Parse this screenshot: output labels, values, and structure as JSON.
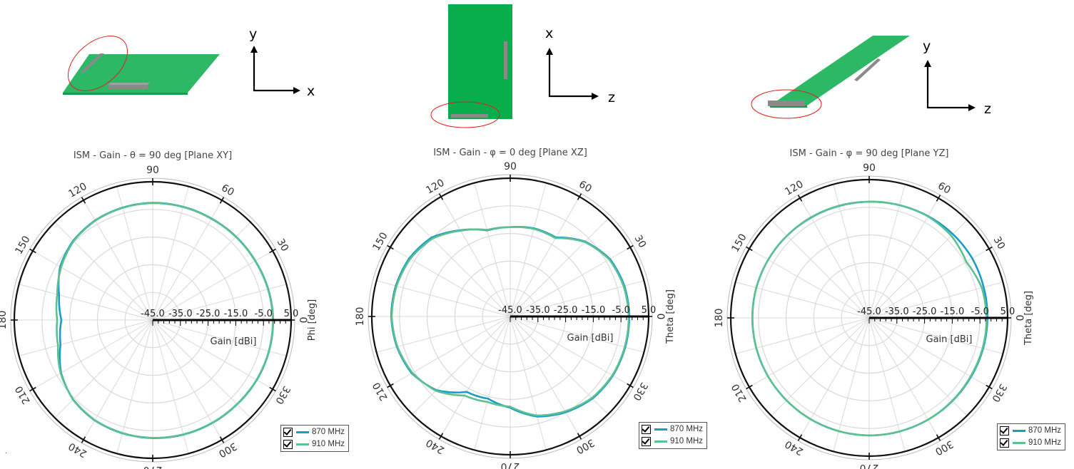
{
  "colors": {
    "s870": "#1a9cc9",
    "s910": "#5cc08f",
    "board": "#2db866",
    "board_dark": "#1a9a4e",
    "component": "#8a8a8a",
    "ellipse": "#e02020"
  },
  "diagram_labels": {
    "xy": {
      "v": "y",
      "h": "x"
    },
    "xz": {
      "v": "x",
      "h": "z"
    },
    "yz": {
      "v": "y",
      "h": "z"
    }
  },
  "chart_data": [
    {
      "type": "polar",
      "title": "ISM - Gain - θ = 90 deg [Plane XY]",
      "angle_ticks": [
        "0",
        "30",
        "60",
        "90",
        "120",
        "150",
        "180",
        "210",
        "240",
        "270",
        "300",
        "330"
      ],
      "angle_label": "Phi [deg]",
      "radial_label": "Gain [dBi]",
      "radial_ticks": [
        "-45.0",
        "-35.0",
        "-25.0",
        "-15.0",
        "-5.0",
        "5.0"
      ],
      "rlim": [
        -45,
        5
      ],
      "legend": [
        "870 MHz",
        "910 MHz"
      ],
      "series": [
        {
          "name": "870 MHz",
          "angles": [
            0,
            15,
            30,
            45,
            60,
            75,
            90,
            105,
            120,
            135,
            150,
            165,
            180,
            195,
            210,
            225,
            240,
            255,
            270,
            285,
            300,
            315,
            330,
            345
          ],
          "values": [
            -1.5,
            -1.8,
            -2.2,
            -2.4,
            -2.6,
            -2.6,
            -2.6,
            -2.9,
            -3.4,
            -4.4,
            -6.4,
            -10,
            -12,
            -10.5,
            -6.8,
            -4.3,
            -3.1,
            -2.6,
            -2.3,
            -2.1,
            -2.0,
            -1.9,
            -1.6,
            -1.5
          ]
        },
        {
          "name": "910 MHz",
          "angles": [
            0,
            15,
            30,
            45,
            60,
            75,
            90,
            105,
            120,
            135,
            150,
            165,
            180,
            195,
            210,
            225,
            240,
            255,
            270,
            285,
            300,
            315,
            330,
            345
          ],
          "values": [
            -1.6,
            -1.9,
            -2.3,
            -2.5,
            -2.7,
            -2.7,
            -2.7,
            -3.0,
            -3.5,
            -4.6,
            -6.8,
            -9.3,
            -10.5,
            -9.6,
            -6.6,
            -4.4,
            -3.2,
            -2.7,
            -2.4,
            -2.2,
            -2.1,
            -2.0,
            -1.7,
            -1.6
          ]
        }
      ]
    },
    {
      "type": "polar",
      "title": "ISM - Gain - φ = 0 deg [Plane XZ]",
      "angle_ticks": [
        "0",
        "30",
        "60",
        "90",
        "120",
        "150",
        "180",
        "210",
        "240",
        "270",
        "300",
        "330"
      ],
      "angle_label": "Theta [deg]",
      "radial_label": "Gain [dBi]",
      "radial_ticks": [
        "-45.0",
        "-35.0",
        "-25.0",
        "-15.0",
        "-5.0",
        "5.0"
      ],
      "rlim": [
        -45,
        5
      ],
      "legend": [
        "870 MHz",
        "910 MHz"
      ],
      "series": [
        {
          "name": "870 MHz",
          "angles": [
            0,
            15,
            30,
            45,
            60,
            75,
            90,
            105,
            120,
            135,
            150,
            165,
            180,
            195,
            210,
            225,
            240,
            255,
            270,
            285,
            300,
            315,
            330,
            345
          ],
          "values": [
            -2.0,
            -2.3,
            -3.4,
            -6.7,
            -12.0,
            -12.0,
            -12.7,
            -12.8,
            -9.0,
            -4.7,
            -2.9,
            -2.2,
            -2.0,
            -2.6,
            -3.9,
            -7.3,
            -13.5,
            -14.2,
            -12.0,
            -7.5,
            -5.0,
            -3.0,
            -2.2,
            -2.0
          ]
        },
        {
          "name": "910 MHz",
          "angles": [
            0,
            15,
            30,
            45,
            60,
            75,
            90,
            105,
            120,
            135,
            150,
            165,
            180,
            195,
            210,
            225,
            240,
            255,
            270,
            285,
            300,
            315,
            330,
            345
          ],
          "values": [
            -2.2,
            -2.6,
            -3.7,
            -6.9,
            -12.3,
            -12.2,
            -12.7,
            -12.6,
            -9.2,
            -5.2,
            -3.3,
            -2.5,
            -2.2,
            -2.8,
            -4.2,
            -7.0,
            -12.0,
            -13.0,
            -12.4,
            -7.9,
            -5.4,
            -3.3,
            -2.4,
            -2.2
          ]
        }
      ]
    },
    {
      "type": "polar",
      "title": "ISM - Gain - φ = 90 deg [Plane YZ]",
      "angle_ticks": [
        "0",
        "30",
        "60",
        "90",
        "120",
        "150",
        "180",
        "210",
        "240",
        "270",
        "300",
        "330"
      ],
      "angle_label": "Theta [deg]",
      "radial_label": "Gain [dBi]",
      "radial_ticks": [
        "-45.0",
        "-35.0",
        "-25.0",
        "-15.0",
        "-5.0",
        "5.0"
      ],
      "rlim": [
        -45,
        5
      ],
      "legend": [
        "870 MHz",
        "910 MHz"
      ],
      "series": [
        {
          "name": "870 MHz",
          "angles": [
            0,
            15,
            30,
            45,
            60,
            75,
            90,
            105,
            120,
            135,
            150,
            165,
            180,
            195,
            210,
            225,
            240,
            255,
            270,
            285,
            300,
            315,
            330,
            345
          ],
          "values": [
            -2.3,
            -2.2,
            -2.0,
            -2.2,
            -2.5,
            -2.8,
            -3.0,
            -3.1,
            -3.1,
            -3.0,
            -2.9,
            -2.8,
            -2.8,
            -2.8,
            -2.8,
            -2.8,
            -2.7,
            -2.6,
            -2.5,
            -2.5,
            -2.5,
            -2.5,
            -2.5,
            -2.4
          ]
        },
        {
          "name": "910 MHz",
          "angles": [
            0,
            15,
            30,
            45,
            60,
            75,
            90,
            105,
            120,
            135,
            150,
            165,
            180,
            195,
            210,
            225,
            240,
            255,
            270,
            285,
            300,
            315,
            330,
            345
          ],
          "values": [
            -2.6,
            -2.9,
            -4.5,
            -3.0,
            -2.6,
            -2.8,
            -3.0,
            -3.0,
            -3.0,
            -3.0,
            -2.9,
            -2.8,
            -2.8,
            -2.8,
            -2.8,
            -2.8,
            -2.7,
            -2.6,
            -2.5,
            -2.5,
            -2.5,
            -2.6,
            -2.7,
            -2.6
          ]
        }
      ]
    }
  ]
}
